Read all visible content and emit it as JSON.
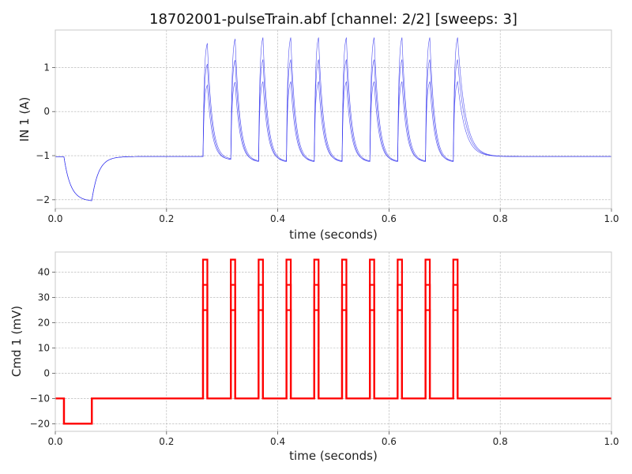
{
  "chart_data": [
    {
      "type": "line",
      "title": "18702001-pulseTrain.abf [channel: 2/2] [sweeps: 3]",
      "xlabel": "time (seconds)",
      "ylabel": "IN 1 (A)",
      "xlim": [
        0,
        1.0
      ],
      "ylim": [
        -2.2,
        1.85
      ],
      "xticks": [
        "0.0",
        "0.2",
        "0.4",
        "0.6",
        "0.8",
        "1.0"
      ],
      "yticks": [
        "−2",
        "−1",
        "0",
        "1"
      ],
      "xtick_values": [
        0,
        0.2,
        0.4,
        0.6,
        0.8,
        1.0
      ],
      "ytick_values": [
        -2,
        -1,
        0,
        1
      ],
      "grid": true,
      "color": "#3333ee",
      "baseline": -1.02,
      "pre_step": {
        "x": [
          0.0,
          0.0156
        ],
        "value": -1.03
      },
      "hyperpolarizing_step": {
        "x": [
          0.0156,
          0.0656
        ],
        "trough": -2.02
      },
      "pulse_onsets": [
        0.2656,
        0.3156,
        0.3656,
        0.4156,
        0.4656,
        0.5156,
        0.5656,
        0.6156,
        0.6656,
        0.7156
      ],
      "pulse_width": 0.0078,
      "series": [
        {
          "peaks": [
            1.55,
            1.65,
            1.68,
            1.68,
            1.68,
            1.68,
            1.68,
            1.68,
            1.68,
            1.68
          ],
          "troughs": [
            -0.72,
            -0.75,
            -0.75,
            -0.75,
            -0.75,
            -0.75,
            -0.75,
            -0.75,
            -0.75,
            -0.75
          ]
        },
        {
          "peaks": [
            1.08,
            1.17,
            1.18,
            1.18,
            1.18,
            1.18,
            1.18,
            1.18,
            1.18,
            1.18
          ],
          "troughs": [
            -0.8,
            -0.83,
            -0.83,
            -0.83,
            -0.83,
            -0.83,
            -0.83,
            -0.83,
            -0.83,
            -0.83
          ]
        },
        {
          "peaks": [
            0.6,
            0.67,
            0.68,
            0.68,
            0.68,
            0.68,
            0.68,
            0.68,
            0.68,
            0.68
          ],
          "troughs": [
            -0.86,
            -0.88,
            -0.88,
            -0.88,
            -0.88,
            -0.88,
            -0.88,
            -0.88,
            -0.88,
            -0.88
          ]
        }
      ]
    },
    {
      "type": "line",
      "title": "",
      "xlabel": "time (seconds)",
      "ylabel": "Cmd 1 (mV)",
      "xlim": [
        0,
        1.0
      ],
      "ylim": [
        -23,
        48
      ],
      "xticks": [
        "0.0",
        "0.2",
        "0.4",
        "0.6",
        "0.8",
        "1.0"
      ],
      "yticks": [
        "−20",
        "−10",
        "0",
        "10",
        "20",
        "30",
        "40"
      ],
      "xtick_values": [
        0,
        0.2,
        0.4,
        0.6,
        0.8,
        1.0
      ],
      "ytick_values": [
        -20,
        -10,
        0,
        10,
        20,
        30,
        40
      ],
      "grid": true,
      "color": "#ff0000",
      "holding": -10,
      "step": {
        "x": [
          0.0156,
          0.0656
        ],
        "value": -20
      },
      "pulse_onsets": [
        0.2656,
        0.3156,
        0.3656,
        0.4156,
        0.4656,
        0.5156,
        0.5656,
        0.6156,
        0.6656,
        0.7156
      ],
      "pulse_width": 0.0078,
      "series": [
        {
          "pulse_level": 25
        },
        {
          "pulse_level": 35
        },
        {
          "pulse_level": 45
        }
      ]
    }
  ]
}
